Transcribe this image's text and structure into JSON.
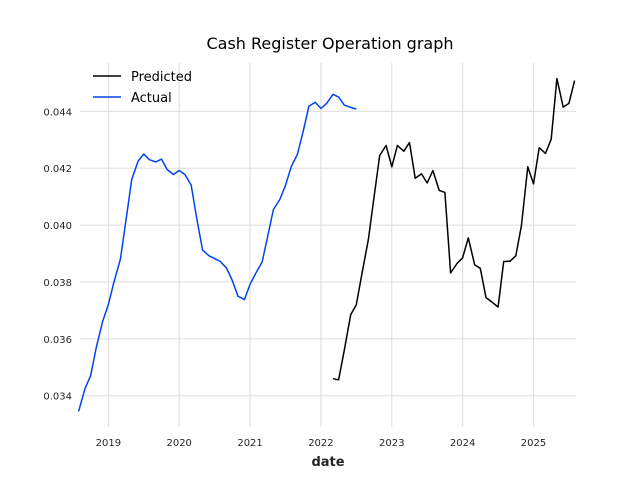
{
  "chart_data": {
    "type": "line",
    "title": "Cash Register Operation graph",
    "xlabel": "date",
    "ylabel": "",
    "x_ticks": [
      "2019",
      "2020",
      "2021",
      "2022",
      "2023",
      "2024",
      "2025"
    ],
    "y_ticks": [
      "0.034",
      "0.036",
      "0.038",
      "0.040",
      "0.042",
      "0.044"
    ],
    "xlim": [
      2018.6,
      2025.6
    ],
    "ylim": [
      0.0329,
      0.0457
    ],
    "grid": true,
    "legend_position": "top-left",
    "series": [
      {
        "name": "Predicted",
        "color": "#000000",
        "x": [
          2022.17,
          2022.25,
          2022.33,
          2022.42,
          2022.5,
          2022.58,
          2022.67,
          2022.75,
          2022.83,
          2022.92,
          2023.0,
          2023.08,
          2023.17,
          2023.25,
          2023.33,
          2023.42,
          2023.5,
          2023.58,
          2023.67,
          2023.75,
          2023.83,
          2023.92,
          2024.0,
          2024.08,
          2024.17,
          2024.25,
          2024.33,
          2024.42,
          2024.5,
          2024.58,
          2024.67,
          2024.75,
          2024.83,
          2024.92,
          2025.0,
          2025.08,
          2025.17,
          2025.25,
          2025.33,
          2025.42,
          2025.5,
          2025.58
        ],
        "y": [
          0.0346,
          0.03456,
          0.0356,
          0.03685,
          0.0372,
          0.0383,
          0.0395,
          0.041,
          0.04245,
          0.0428,
          0.04205,
          0.0428,
          0.0426,
          0.0429,
          0.04165,
          0.0418,
          0.04148,
          0.04192,
          0.04122,
          0.04115,
          0.03832,
          0.03865,
          0.03885,
          0.03955,
          0.0386,
          0.03848,
          0.03745,
          0.03728,
          0.03712,
          0.03872,
          0.03873,
          0.03892,
          0.03998,
          0.04205,
          0.04145,
          0.04272,
          0.04252,
          0.04302,
          0.04515,
          0.04415,
          0.04428,
          0.04508
        ]
      },
      {
        "name": "Actual",
        "color": "#0044ee",
        "x": [
          2018.58,
          2018.67,
          2018.75,
          2018.83,
          2018.92,
          2019.0,
          2019.08,
          2019.17,
          2019.25,
          2019.33,
          2019.42,
          2019.5,
          2019.58,
          2019.67,
          2019.75,
          2019.83,
          2019.92,
          2020.0,
          2020.08,
          2020.17,
          2020.25,
          2020.33,
          2020.42,
          2020.5,
          2020.58,
          2020.67,
          2020.75,
          2020.83,
          2020.92,
          2021.0,
          2021.08,
          2021.17,
          2021.25,
          2021.33,
          2021.42,
          2021.5,
          2021.58,
          2021.67,
          2021.75,
          2021.83,
          2021.92,
          2022.0,
          2022.08,
          2022.17,
          2022.25,
          2022.33,
          2022.42,
          2022.5
        ],
        "y": [
          0.03345,
          0.03425,
          0.0347,
          0.0357,
          0.03662,
          0.0372,
          0.038,
          0.0388,
          0.0402,
          0.0416,
          0.04225,
          0.0425,
          0.0423,
          0.04222,
          0.04232,
          0.04195,
          0.04178,
          0.04192,
          0.04178,
          0.0414,
          0.0402,
          0.03912,
          0.03892,
          0.03882,
          0.03872,
          0.03848,
          0.03805,
          0.0375,
          0.03738,
          0.03792,
          0.0383,
          0.0387,
          0.03962,
          0.04055,
          0.0409,
          0.0414,
          0.04205,
          0.0425,
          0.0433,
          0.04418,
          0.04432,
          0.0441,
          0.04428,
          0.0446,
          0.0445,
          0.04422,
          0.04414,
          0.04408
        ]
      }
    ]
  }
}
